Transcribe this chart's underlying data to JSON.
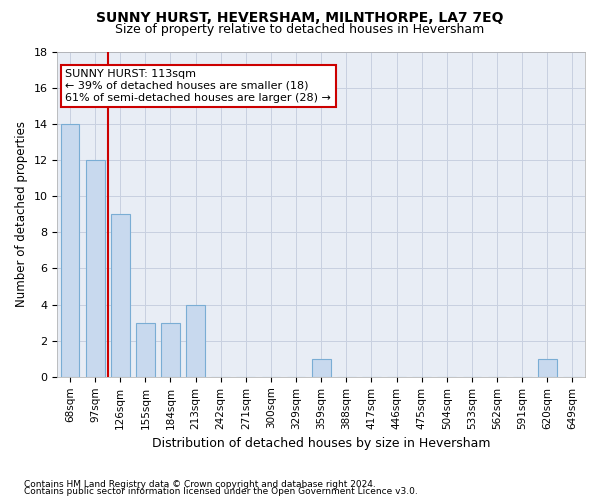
{
  "title": "SUNNY HURST, HEVERSHAM, MILNTHORPE, LA7 7EQ",
  "subtitle": "Size of property relative to detached houses in Heversham",
  "xlabel": "Distribution of detached houses by size in Heversham",
  "ylabel": "Number of detached properties",
  "categories": [
    "68sqm",
    "97sqm",
    "126sqm",
    "155sqm",
    "184sqm",
    "213sqm",
    "242sqm",
    "271sqm",
    "300sqm",
    "329sqm",
    "359sqm",
    "388sqm",
    "417sqm",
    "446sqm",
    "475sqm",
    "504sqm",
    "533sqm",
    "562sqm",
    "591sqm",
    "620sqm",
    "649sqm"
  ],
  "values": [
    14,
    12,
    9,
    3,
    3,
    4,
    0,
    0,
    0,
    0,
    1,
    0,
    0,
    0,
    0,
    0,
    0,
    0,
    0,
    1,
    0
  ],
  "bar_color": "#c8d9ee",
  "bar_edge_color": "#7aadd4",
  "ylim": [
    0,
    18
  ],
  "yticks": [
    0,
    2,
    4,
    6,
    8,
    10,
    12,
    14,
    16,
    18
  ],
  "vline_color": "#cc0000",
  "annotation_line1": "SUNNY HURST: 113sqm",
  "annotation_line2": "← 39% of detached houses are smaller (18)",
  "annotation_line3": "61% of semi-detached houses are larger (28) →",
  "footer_line1": "Contains HM Land Registry data © Crown copyright and database right 2024.",
  "footer_line2": "Contains public sector information licensed under the Open Government Licence v3.0.",
  "background_color": "#ffffff",
  "plot_bg_color": "#e8edf5",
  "grid_color": "#c8d0e0"
}
